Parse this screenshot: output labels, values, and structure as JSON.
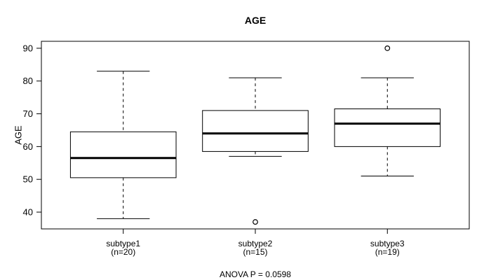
{
  "colors": {
    "line": "#000000",
    "median": "#000000",
    "box_fill": "#ffffff",
    "background": "#ffffff"
  },
  "chart_data": {
    "type": "boxplot",
    "title": "AGE",
    "xlabel": "",
    "ylabel": "AGE",
    "caption": "ANOVA P = 0.0598",
    "ylim": [
      34.88,
      92.12
    ],
    "yticks": [
      40,
      50,
      60,
      70,
      80,
      90
    ],
    "grid": false,
    "legend_position": "none",
    "groups": [
      {
        "label": "subtype1",
        "sublabel": "(n=20)",
        "whisker_low": 38,
        "q1": 50.5,
        "median": 56.5,
        "q3": 64.5,
        "whisker_high": 83,
        "outliers": []
      },
      {
        "label": "subtype2",
        "sublabel": "(n=15)",
        "whisker_low": 57,
        "q1": 58.5,
        "median": 64,
        "q3": 71,
        "whisker_high": 81,
        "outliers": [
          37
        ]
      },
      {
        "label": "subtype3",
        "sublabel": "(n=19)",
        "whisker_low": 51,
        "q1": 60,
        "median": 67,
        "q3": 71.5,
        "whisker_high": 81,
        "outliers": [
          90
        ]
      }
    ]
  }
}
